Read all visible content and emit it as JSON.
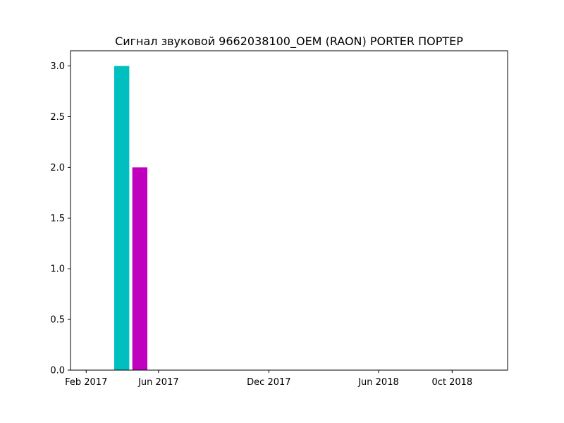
{
  "chart_data": {
    "type": "bar",
    "title": "Сигнал звуковой 9662038100_OEM (RAON) PORTER ПОРТЕР",
    "xlabel": "",
    "ylabel": "",
    "x_axis_type": "date",
    "xlim": [
      "2017-01-06",
      "2019-01-01"
    ],
    "ylim": [
      0,
      3.15
    ],
    "bars": [
      {
        "date": "2017-04-01",
        "value": 3,
        "color": "#00bfbf"
      },
      {
        "date": "2017-05-01",
        "value": 2,
        "color": "#bf00bf"
      }
    ],
    "bar_width_days": 25,
    "x_ticks": [
      {
        "date": "2017-02-01",
        "label": "Feb 2017"
      },
      {
        "date": "2017-06-01",
        "label": "Jun 2017"
      },
      {
        "date": "2017-12-01",
        "label": "Dec 2017"
      },
      {
        "date": "2018-06-01",
        "label": "Jun 2018"
      },
      {
        "date": "2018-10-01",
        "label": "0ct 2018"
      }
    ],
    "y_ticks": [
      {
        "value": 0.0,
        "label": "0.0"
      },
      {
        "value": 0.5,
        "label": "0.5"
      },
      {
        "value": 1.0,
        "label": "1.0"
      },
      {
        "value": 1.5,
        "label": "1.5"
      },
      {
        "value": 2.0,
        "label": "2.0"
      },
      {
        "value": 2.5,
        "label": "2.5"
      },
      {
        "value": 3.0,
        "label": "3.0"
      }
    ],
    "grid": false,
    "legend": "none"
  }
}
